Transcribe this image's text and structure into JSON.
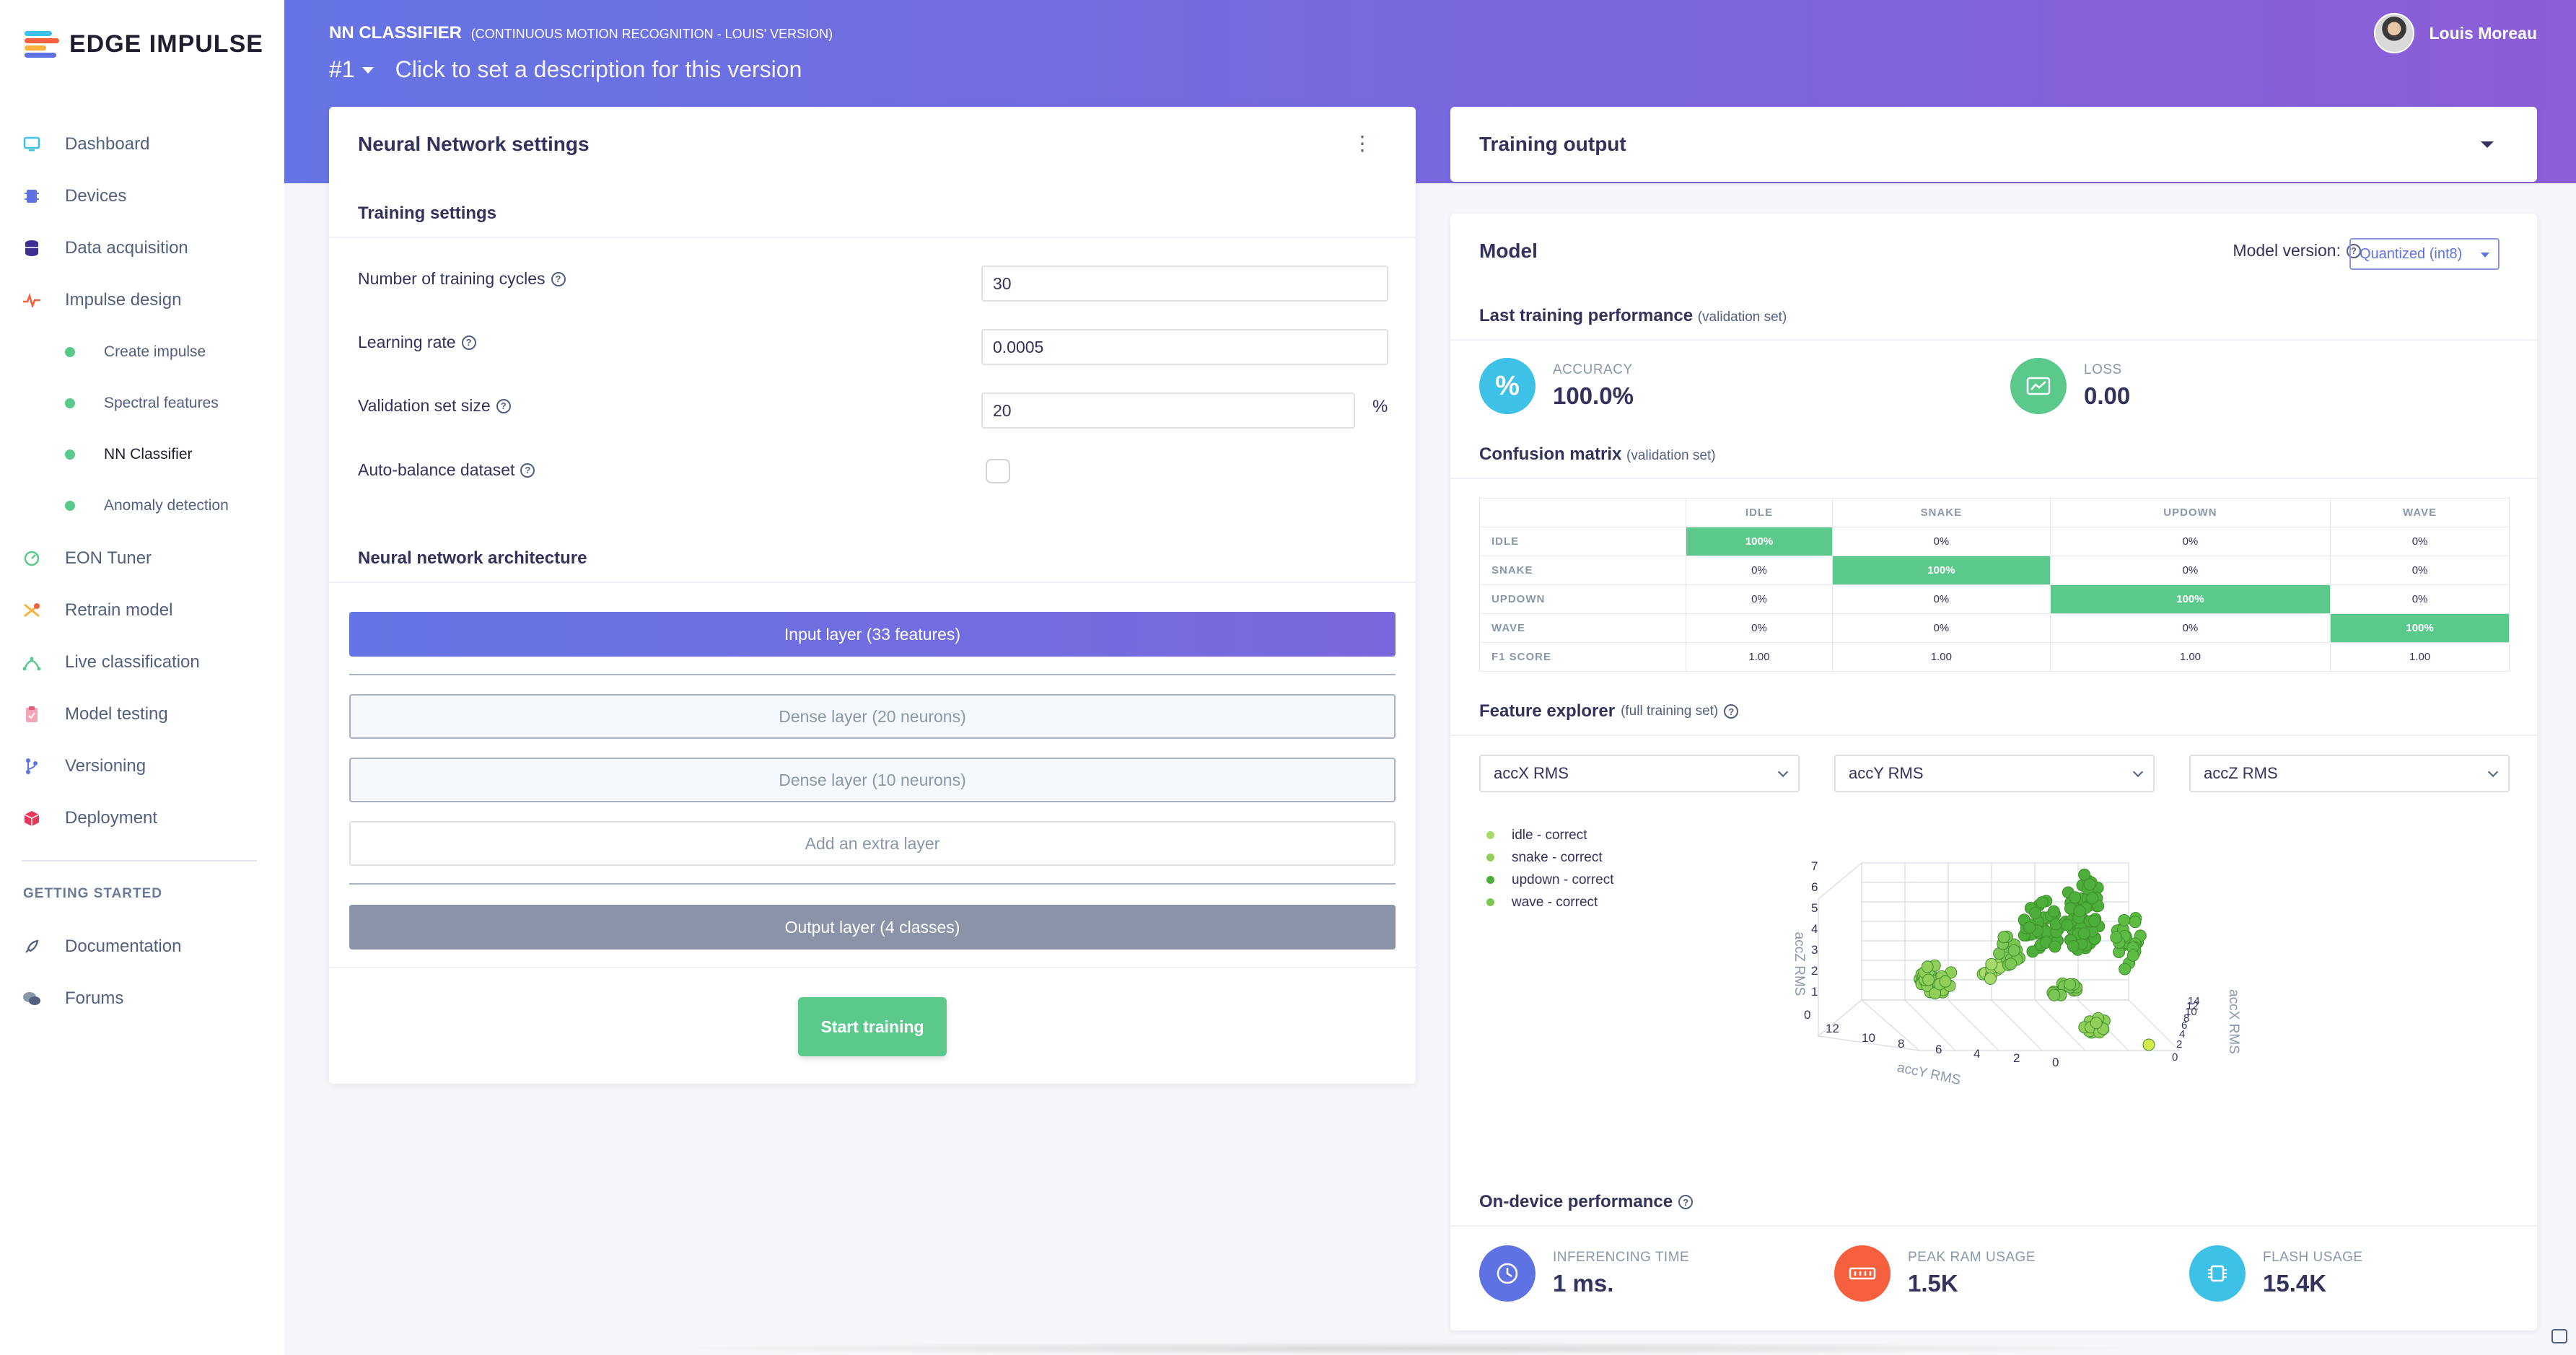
{
  "brand": {
    "name": "EDGE IMPULSE"
  },
  "sidebar": {
    "items": [
      {
        "label": "Dashboard",
        "icon": "monitor-icon"
      },
      {
        "label": "Devices",
        "icon": "chip-icon"
      },
      {
        "label": "Data acquisition",
        "icon": "database-icon"
      },
      {
        "label": "Impulse design",
        "icon": "pulse-icon"
      },
      {
        "label": "EON Tuner",
        "icon": "tuner-icon"
      },
      {
        "label": "Retrain model",
        "icon": "retrain-icon"
      },
      {
        "label": "Live classification",
        "icon": "live-icon"
      },
      {
        "label": "Model testing",
        "icon": "clipboard-icon"
      },
      {
        "label": "Versioning",
        "icon": "branch-icon"
      },
      {
        "label": "Deployment",
        "icon": "package-icon"
      }
    ],
    "sub_items": [
      "Create impulse",
      "Spectral features",
      "NN Classifier",
      "Anomaly detection"
    ],
    "section_heading": "GETTING STARTED",
    "help_items": [
      {
        "label": "Documentation",
        "icon": "rocket-icon"
      },
      {
        "label": "Forums",
        "icon": "chat-icon"
      }
    ]
  },
  "header": {
    "title": "NN CLASSIFIER",
    "subtitle": "(CONTINUOUS MOTION RECOGNITION - LOUIS' VERSION)",
    "version": "#1",
    "description": "Click to set a description for this version",
    "user_name": "Louis Moreau"
  },
  "nn_settings": {
    "title": "Neural Network settings",
    "training_settings_title": "Training settings",
    "fields": {
      "cycles_label": "Number of training cycles",
      "cycles_value": "30",
      "lr_label": "Learning rate",
      "lr_value": "0.0005",
      "val_label": "Validation set size",
      "val_value": "20",
      "val_unit": "%",
      "autobalance_label": "Auto-balance dataset"
    },
    "architecture_title": "Neural network architecture",
    "layers": {
      "input": "Input layer (33 features)",
      "dense1": "Dense layer (20 neurons)",
      "dense2": "Dense layer (10 neurons)",
      "add": "Add an extra layer",
      "output": "Output layer (4 classes)"
    },
    "start_button": "Start training"
  },
  "training_output": {
    "title": "Training output"
  },
  "model": {
    "title": "Model",
    "version_label": "Model version:",
    "version_value": "Quantized (int8)",
    "last_perf_title": "Last training performance",
    "last_perf_note": "(validation set)",
    "accuracy_label": "ACCURACY",
    "accuracy_value": "100.0%",
    "loss_label": "LOSS",
    "loss_value": "0.00",
    "confusion_title": "Confusion matrix",
    "confusion_note": "(validation set)",
    "confusion": {
      "columns": [
        "IDLE",
        "SNAKE",
        "UPDOWN",
        "WAVE"
      ],
      "rows": [
        {
          "label": "IDLE",
          "cells": [
            "100%",
            "0%",
            "0%",
            "0%"
          ]
        },
        {
          "label": "SNAKE",
          "cells": [
            "0%",
            "100%",
            "0%",
            "0%"
          ]
        },
        {
          "label": "UPDOWN",
          "cells": [
            "0%",
            "0%",
            "100%",
            "0%"
          ]
        },
        {
          "label": "WAVE",
          "cells": [
            "0%",
            "0%",
            "0%",
            "100%"
          ]
        }
      ],
      "f1_label": "F1 SCORE",
      "f1": [
        "1.00",
        "1.00",
        "1.00",
        "1.00"
      ]
    },
    "feature_title": "Feature explorer",
    "feature_note": "(full training set)",
    "feature_selects": [
      "accX RMS",
      "accY RMS",
      "accZ RMS"
    ],
    "legend": [
      {
        "label": "idle - correct",
        "color": "#a6d96a"
      },
      {
        "label": "snake - correct",
        "color": "#8fcf5a"
      },
      {
        "label": "updown - correct",
        "color": "#4caf3a"
      },
      {
        "label": "wave - correct",
        "color": "#7cc655"
      }
    ],
    "plot": {
      "z_label": "accZ RMS",
      "y_label": "accY RMS",
      "x_label": "accX RMS",
      "z_ticks": [
        "7",
        "6",
        "5",
        "4",
        "3",
        "2",
        "1",
        "0"
      ],
      "y_ticks": [
        "12",
        "10",
        "8",
        "6",
        "4",
        "2",
        "0"
      ],
      "x_ticks": [
        "0",
        "2",
        "4",
        "6",
        "8",
        "10",
        "12",
        "14"
      ]
    },
    "ondevice_title": "On-device performance",
    "perf": [
      {
        "label": "INFERENCING TIME",
        "value": "1 ms.",
        "color": "#5e72e4"
      },
      {
        "label": "PEAK RAM USAGE",
        "value": "1.5K",
        "color": "#f5603e"
      },
      {
        "label": "FLASH USAGE",
        "value": "15.4K",
        "color": "#3ec1e6"
      }
    ]
  },
  "colors": {
    "accent": "#5e72e4",
    "success": "#5bc98c"
  }
}
